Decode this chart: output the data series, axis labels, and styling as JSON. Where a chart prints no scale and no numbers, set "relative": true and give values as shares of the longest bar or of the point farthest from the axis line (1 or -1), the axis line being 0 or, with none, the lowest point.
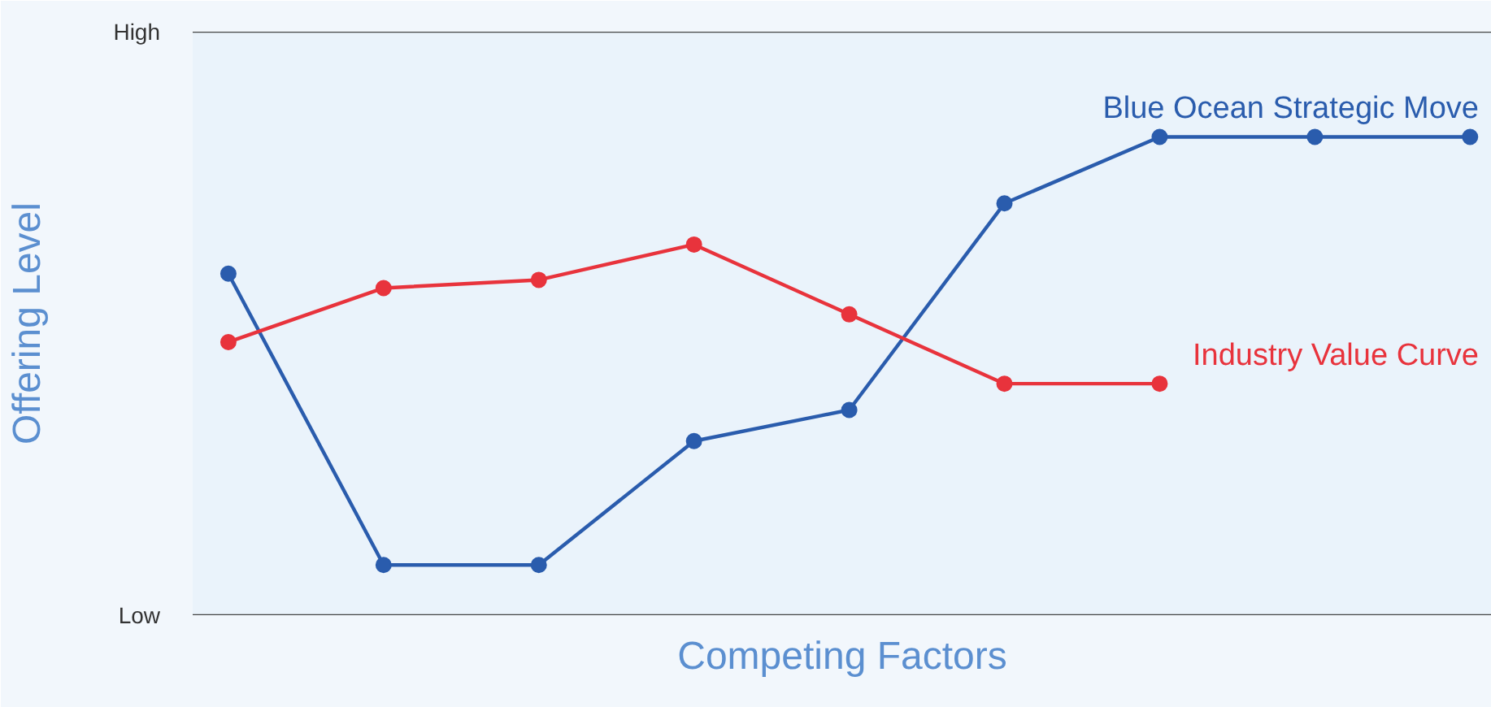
{
  "chart_data": {
    "type": "line",
    "xlabel": "Competing Factors",
    "ylabel": "Offering Level",
    "relative": true,
    "annotations": [
      "High",
      "Low"
    ],
    "categories": [
      null,
      null,
      null,
      null,
      null,
      null,
      null,
      null,
      null
    ],
    "series": [
      {
        "name": "Blue Ocean Strategic Move",
        "color": "#2a5cad",
        "values": [
          0.714,
          0.105,
          0.105,
          0.364,
          0.429,
          0.861,
          1,
          1,
          1
        ]
      },
      {
        "name": "Industry Value Curve",
        "color": "#e8333c",
        "values": [
          0.571,
          0.684,
          0.701,
          0.775,
          0.629,
          0.484,
          0.484,
          null,
          null
        ]
      }
    ],
    "marker": "circle",
    "line_style": "solid"
  }
}
